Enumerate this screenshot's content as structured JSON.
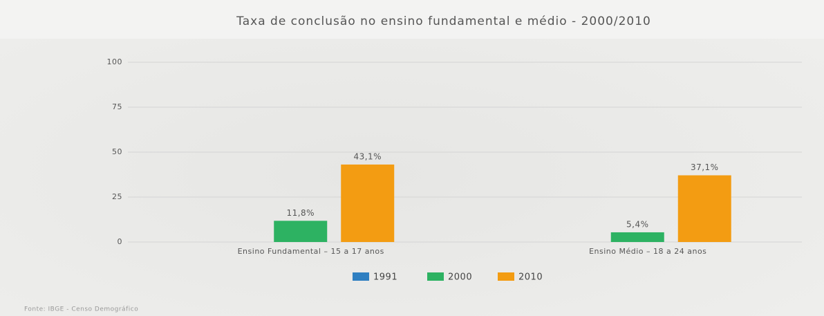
{
  "chart_data": {
    "type": "bar",
    "title": "Taxa de conclusão no ensino fundamental e médio - 2000/2010",
    "categories": [
      "Ensino Fundamental – 15 a 17 anos",
      "Ensino Médio – 18 a 24 anos"
    ],
    "series": [
      {
        "name": "1991",
        "color": "#2f7fc1",
        "values": [
          null,
          null
        ]
      },
      {
        "name": "2000",
        "color": "#2db262",
        "values": [
          11.8,
          5.4
        ],
        "value_labels": [
          "11,8%",
          "5,4%"
        ]
      },
      {
        "name": "2010",
        "color": "#f39c12",
        "values": [
          43.1,
          37.1
        ],
        "value_labels": [
          "43,1%",
          "37,1%"
        ]
      }
    ],
    "ylim": [
      0,
      100
    ],
    "yticks": [
      0,
      25,
      50,
      75,
      100
    ],
    "grid": true,
    "legend": "bottom",
    "source": "Fonte: IBGE - Censo Demográfico"
  }
}
